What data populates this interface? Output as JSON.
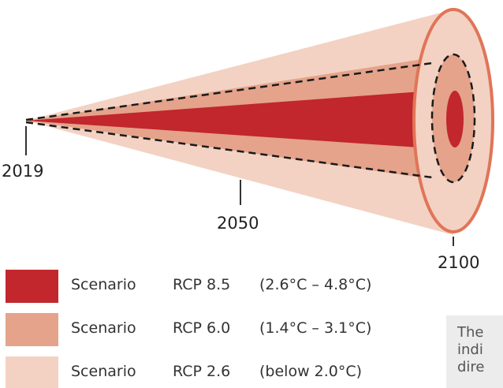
{
  "years": {
    "start": "2019",
    "mid": "2050",
    "end": "2100"
  },
  "legend": [
    {
      "word": "Scenario",
      "rcp": "RCP 8.5",
      "range": "(2.6°C – 4.8°C)",
      "color": "#c1272d"
    },
    {
      "word": "Scenario",
      "rcp": "RCP 6.0",
      "range": "(1.4°C – 3.1°C)",
      "color": "#e4a38a"
    },
    {
      "word": "Scenario",
      "rcp": "RCP 2.6",
      "range": "(below 2.0°C)",
      "color": "#f3d2c3"
    }
  ],
  "colors": {
    "outline": "#e07558",
    "outer_band": "#f3d2c3",
    "middle_band": "#e4a38a",
    "inner_band": "#c1272d",
    "dashes": "#1a1a1a",
    "ticks": "#333333"
  },
  "note": {
    "lines": [
      "The",
      "indi",
      "dire"
    ]
  }
}
